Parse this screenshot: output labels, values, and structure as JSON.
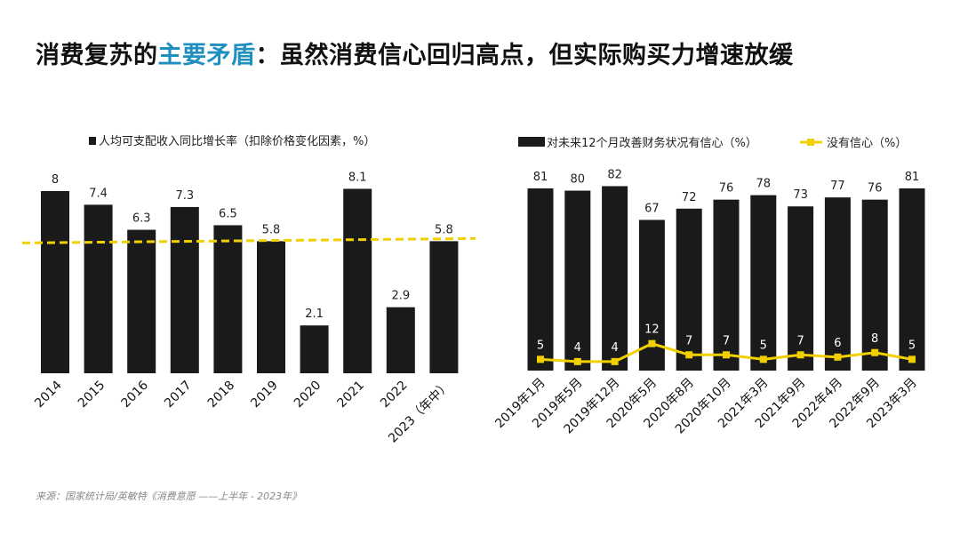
{
  "title": {
    "part1": "消费复苏的",
    "highlight": "主要矛盾",
    "part2": "：虽然消费信心回归高点，但实际购买力增速放缓"
  },
  "source": "来源：国家统计局/英敏特《消费意愿 ——上半年 - 2023年》",
  "colors": {
    "bar": "#1a1a1a",
    "line": "#f2d000",
    "highlight": "#1f8fc0"
  },
  "chart_data": [
    {
      "type": "bar",
      "legend": "人均可支配收入同比增长率（扣除价格变化因素，%）",
      "categories": [
        "2014",
        "2015",
        "2016",
        "2017",
        "2018",
        "2019",
        "2020",
        "2021",
        "2022",
        "2023（年中）"
      ],
      "values": [
        8,
        7.4,
        6.3,
        7.3,
        6.5,
        5.8,
        2.1,
        8.1,
        2.9,
        5.8
      ],
      "value_labels": [
        "8",
        "7.4",
        "6.3",
        "7.3",
        "6.5",
        "5.8",
        "2.1",
        "8.1",
        "2.9",
        "5.8"
      ],
      "reference_line": {
        "value": 5.8,
        "style": "dashed"
      },
      "ylim": [
        0,
        9
      ]
    },
    {
      "type": "bar+line",
      "categories": [
        "2019年1月",
        "2019年5月",
        "2019年12月",
        "2020年5月",
        "2020年8月",
        "2020年10月",
        "2021年3月",
        "2021年9月",
        "2022年4月",
        "2022年9月",
        "2023年3月"
      ],
      "series": [
        {
          "name": "对未来12个月改善财务状况有信心（%）",
          "type": "bar",
          "values": [
            81,
            80,
            82,
            67,
            72,
            76,
            78,
            73,
            77,
            76,
            81
          ]
        },
        {
          "name": "没有信心（%）",
          "type": "line",
          "values": [
            5,
            4,
            4,
            12,
            7,
            7,
            5,
            7,
            6,
            8,
            5
          ]
        }
      ],
      "ylim": [
        0,
        90
      ]
    }
  ]
}
